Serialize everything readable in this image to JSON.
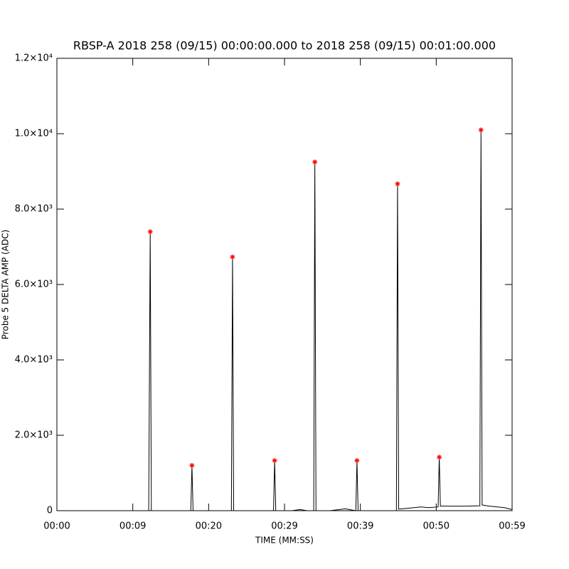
{
  "chart_data": {
    "type": "line",
    "title": "RBSP-A 2018 258 (09/15) 00:00:00.000 to 2018 258 (09/15) 00:01:00.000",
    "x_label": "TIME (MM:SS)",
    "y_label": "Probe 5 DELTA AMP (ADC)",
    "xlim": [
      0,
      60
    ],
    "xticks": [
      {
        "value": 0,
        "label": "00:00"
      },
      {
        "value": 10,
        "label": "00:09"
      },
      {
        "value": 20,
        "label": "00:20"
      },
      {
        "value": 30,
        "label": "00:29"
      },
      {
        "value": 40,
        "label": "00:39"
      },
      {
        "value": 50,
        "label": "00:50"
      },
      {
        "value": 60,
        "label": "00:59"
      }
    ],
    "ylim": [
      0,
      12000
    ],
    "yticks": [
      0,
      {
        "value": 2000,
        "label": "2.0×10³"
      },
      {
        "value": 4000,
        "label": "4.0×10³"
      },
      {
        "value": 6000,
        "label": "6.0×10³"
      },
      {
        "value": 8000,
        "label": "8.0×10³"
      },
      {
        "value": 10000,
        "label": "1.0×10⁴"
      },
      {
        "value": 12000,
        "label": "1.2×10⁴"
      }
    ],
    "series": [
      {
        "color": "#000000",
        "marker": "none",
        "x": [
          0,
          12.1,
          12.3,
          12.45,
          17.65,
          17.8,
          17.95,
          23.0,
          23.15,
          23.3,
          28.55,
          28.7,
          28.85,
          31,
          32,
          33,
          33.85,
          34.0,
          34.15,
          36,
          38,
          39.4,
          39.55,
          39.7,
          40.5,
          44.75,
          44.9,
          45.05,
          46,
          48,
          49,
          50.25,
          50.4,
          50.55,
          52,
          54,
          55.75,
          55.9,
          56.05,
          57,
          59,
          60
        ],
        "values": [
          0,
          0,
          7400,
          0,
          0,
          1200,
          0,
          0,
          6730,
          0,
          0,
          1330,
          0,
          0,
          30,
          0,
          0,
          9250,
          0,
          0,
          50,
          0,
          1330,
          0,
          0,
          0,
          8670,
          40,
          60,
          100,
          80,
          100,
          1420,
          120,
          120,
          120,
          130,
          10100,
          150,
          120,
          80,
          30
        ]
      },
      {
        "color": "#ff0000",
        "marker": "asterisk",
        "x": [
          12.3,
          17.8,
          23.15,
          28.7,
          34.0,
          39.55,
          44.9,
          50.4,
          55.9
        ],
        "values": [
          7400,
          1200,
          6730,
          1330,
          9250,
          1330,
          8670,
          1420,
          10100
        ]
      }
    ]
  }
}
